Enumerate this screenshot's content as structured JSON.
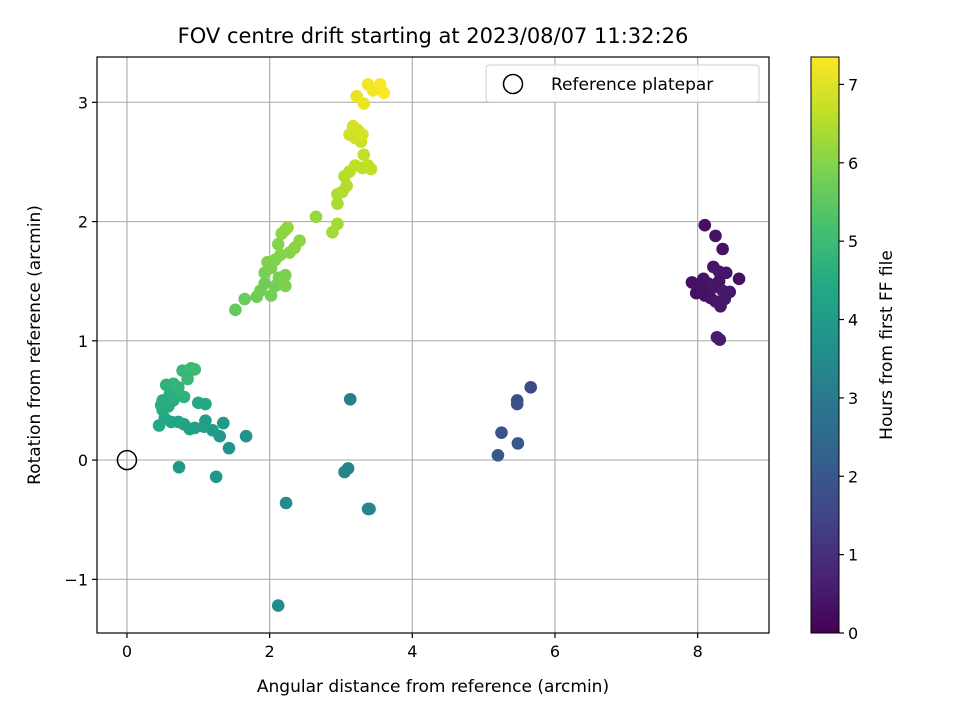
{
  "chart_data": {
    "type": "scatter",
    "title": "FOV centre drift starting at 2023/08/07 11:32:26",
    "xlabel": "Angular distance from reference (arcmin)",
    "ylabel": "Rotation from reference (arcmin)",
    "xlim": [
      -0.42,
      9.0
    ],
    "ylim": [
      -1.45,
      3.38
    ],
    "xticks": [
      0,
      2,
      4,
      6,
      8
    ],
    "yticks": [
      -1,
      0,
      1,
      2,
      3
    ],
    "xtick_labels": [
      "0",
      "2",
      "4",
      "6",
      "8"
    ],
    "ytick_labels": [
      "−1",
      "0",
      "1",
      "2",
      "3"
    ],
    "grid": true,
    "legend": {
      "label": "Reference platepar",
      "placement": "top-right"
    },
    "reference_point": {
      "x": 0,
      "y": 0
    },
    "colorbar": {
      "label": "Hours from first FF file",
      "min": 0,
      "max": 7.35,
      "ticks": [
        0,
        1,
        2,
        3,
        4,
        5,
        6,
        7
      ],
      "tick_labels": [
        "0",
        "1",
        "2",
        "3",
        "4",
        "5",
        "6",
        "7"
      ],
      "colormap": "viridis"
    },
    "points": [
      {
        "x": 8.1,
        "y": 1.97,
        "h": 0.3
      },
      {
        "x": 8.25,
        "y": 1.88,
        "h": 0.35
      },
      {
        "x": 8.35,
        "y": 1.77,
        "h": 0.35
      },
      {
        "x": 8.22,
        "y": 1.62,
        "h": 0.4
      },
      {
        "x": 8.3,
        "y": 1.58,
        "h": 0.45
      },
      {
        "x": 8.4,
        "y": 1.57,
        "h": 0.45
      },
      {
        "x": 8.58,
        "y": 1.52,
        "h": 0.3
      },
      {
        "x": 7.92,
        "y": 1.49,
        "h": 0.3
      },
      {
        "x": 8.0,
        "y": 1.46,
        "h": 0.35
      },
      {
        "x": 8.08,
        "y": 1.52,
        "h": 0.4
      },
      {
        "x": 8.15,
        "y": 1.48,
        "h": 0.4
      },
      {
        "x": 8.2,
        "y": 1.44,
        "h": 0.45
      },
      {
        "x": 8.28,
        "y": 1.47,
        "h": 0.45
      },
      {
        "x": 8.35,
        "y": 1.42,
        "h": 0.5
      },
      {
        "x": 8.45,
        "y": 1.41,
        "h": 0.5
      },
      {
        "x": 7.98,
        "y": 1.4,
        "h": 0.3
      },
      {
        "x": 8.1,
        "y": 1.38,
        "h": 0.35
      },
      {
        "x": 8.18,
        "y": 1.36,
        "h": 0.4
      },
      {
        "x": 8.25,
        "y": 1.33,
        "h": 0.45
      },
      {
        "x": 8.32,
        "y": 1.29,
        "h": 0.45
      },
      {
        "x": 8.38,
        "y": 1.35,
        "h": 0.5
      },
      {
        "x": 8.27,
        "y": 1.03,
        "h": 0.55
      },
      {
        "x": 8.31,
        "y": 1.01,
        "h": 0.55
      },
      {
        "x": 8.05,
        "y": 1.45,
        "h": 0.35
      },
      {
        "x": 8.3,
        "y": 1.5,
        "h": 0.4
      },
      {
        "x": 5.66,
        "y": 0.61,
        "h": 1.6
      },
      {
        "x": 5.47,
        "y": 0.5,
        "h": 1.75
      },
      {
        "x": 5.47,
        "y": 0.47,
        "h": 1.8
      },
      {
        "x": 5.25,
        "y": 0.23,
        "h": 1.9
      },
      {
        "x": 5.48,
        "y": 0.14,
        "h": 2.0
      },
      {
        "x": 5.2,
        "y": 0.04,
        "h": 2.05
      },
      {
        "x": 3.13,
        "y": 0.51,
        "h": 3.2
      },
      {
        "x": 3.1,
        "y": -0.07,
        "h": 3.25
      },
      {
        "x": 3.05,
        "y": -0.1,
        "h": 3.3
      },
      {
        "x": 3.38,
        "y": -0.41,
        "h": 3.3
      },
      {
        "x": 3.4,
        "y": -0.41,
        "h": 3.35
      },
      {
        "x": 2.23,
        "y": -0.36,
        "h": 3.5
      },
      {
        "x": 2.12,
        "y": -1.22,
        "h": 3.6
      },
      {
        "x": 1.67,
        "y": 0.2,
        "h": 3.7
      },
      {
        "x": 1.43,
        "y": 0.1,
        "h": 3.8
      },
      {
        "x": 1.25,
        "y": -0.14,
        "h": 3.85
      },
      {
        "x": 0.73,
        "y": -0.06,
        "h": 3.9
      },
      {
        "x": 1.3,
        "y": 0.2,
        "h": 3.9
      },
      {
        "x": 1.35,
        "y": 0.31,
        "h": 3.95
      },
      {
        "x": 1.2,
        "y": 0.25,
        "h": 4.0
      },
      {
        "x": 1.1,
        "y": 0.33,
        "h": 4.05
      },
      {
        "x": 1.08,
        "y": 0.28,
        "h": 4.1
      },
      {
        "x": 0.95,
        "y": 0.27,
        "h": 4.15
      },
      {
        "x": 0.88,
        "y": 0.26,
        "h": 4.2
      },
      {
        "x": 0.8,
        "y": 0.3,
        "h": 4.2
      },
      {
        "x": 0.72,
        "y": 0.32,
        "h": 4.3
      },
      {
        "x": 0.62,
        "y": 0.32,
        "h": 4.3
      },
      {
        "x": 0.53,
        "y": 0.35,
        "h": 4.35
      },
      {
        "x": 0.45,
        "y": 0.29,
        "h": 4.4
      },
      {
        "x": 1.1,
        "y": 0.47,
        "h": 4.4
      },
      {
        "x": 1.0,
        "y": 0.48,
        "h": 4.45
      },
      {
        "x": 0.5,
        "y": 0.42,
        "h": 4.5
      },
      {
        "x": 0.58,
        "y": 0.45,
        "h": 4.5
      },
      {
        "x": 0.65,
        "y": 0.5,
        "h": 4.55
      },
      {
        "x": 0.5,
        "y": 0.5,
        "h": 4.6
      },
      {
        "x": 0.6,
        "y": 0.55,
        "h": 4.6
      },
      {
        "x": 0.7,
        "y": 0.58,
        "h": 4.65
      },
      {
        "x": 0.8,
        "y": 0.53,
        "h": 4.7
      },
      {
        "x": 0.55,
        "y": 0.63,
        "h": 4.7
      },
      {
        "x": 0.65,
        "y": 0.64,
        "h": 4.75
      },
      {
        "x": 0.72,
        "y": 0.61,
        "h": 4.8
      },
      {
        "x": 0.78,
        "y": 0.75,
        "h": 4.85
      },
      {
        "x": 0.85,
        "y": 0.73,
        "h": 4.9
      },
      {
        "x": 0.9,
        "y": 0.77,
        "h": 4.95
      },
      {
        "x": 0.95,
        "y": 0.76,
        "h": 5.0
      },
      {
        "x": 0.85,
        "y": 0.68,
        "h": 4.9
      },
      {
        "x": 0.48,
        "y": 0.46,
        "h": 4.55
      },
      {
        "x": 1.52,
        "y": 1.26,
        "h": 5.6
      },
      {
        "x": 1.65,
        "y": 1.35,
        "h": 5.65
      },
      {
        "x": 1.82,
        "y": 1.37,
        "h": 5.7
      },
      {
        "x": 1.87,
        "y": 1.42,
        "h": 5.75
      },
      {
        "x": 1.93,
        "y": 1.48,
        "h": 5.75
      },
      {
        "x": 2.02,
        "y": 1.38,
        "h": 5.8
      },
      {
        "x": 2.08,
        "y": 1.46,
        "h": 5.8
      },
      {
        "x": 2.13,
        "y": 1.53,
        "h": 5.85
      },
      {
        "x": 2.22,
        "y": 1.46,
        "h": 5.9
      },
      {
        "x": 2.22,
        "y": 1.55,
        "h": 5.9
      },
      {
        "x": 1.93,
        "y": 1.57,
        "h": 5.85
      },
      {
        "x": 2.02,
        "y": 1.61,
        "h": 5.9
      },
      {
        "x": 1.97,
        "y": 1.66,
        "h": 5.95
      },
      {
        "x": 2.08,
        "y": 1.68,
        "h": 5.95
      },
      {
        "x": 2.15,
        "y": 1.72,
        "h": 6.0
      },
      {
        "x": 2.28,
        "y": 1.74,
        "h": 6.05
      },
      {
        "x": 2.35,
        "y": 1.78,
        "h": 6.05
      },
      {
        "x": 2.42,
        "y": 1.84,
        "h": 6.1
      },
      {
        "x": 2.12,
        "y": 1.81,
        "h": 6.0
      },
      {
        "x": 2.17,
        "y": 1.9,
        "h": 6.05
      },
      {
        "x": 2.22,
        "y": 1.93,
        "h": 6.1
      },
      {
        "x": 2.25,
        "y": 1.95,
        "h": 6.1
      },
      {
        "x": 2.65,
        "y": 2.04,
        "h": 6.2
      },
      {
        "x": 2.88,
        "y": 1.91,
        "h": 6.35
      },
      {
        "x": 2.95,
        "y": 1.98,
        "h": 6.35
      },
      {
        "x": 2.95,
        "y": 2.15,
        "h": 6.4
      },
      {
        "x": 2.95,
        "y": 2.23,
        "h": 6.45
      },
      {
        "x": 3.02,
        "y": 2.25,
        "h": 6.45
      },
      {
        "x": 3.08,
        "y": 2.3,
        "h": 6.5
      },
      {
        "x": 3.05,
        "y": 2.38,
        "h": 6.5
      },
      {
        "x": 3.12,
        "y": 2.42,
        "h": 6.55
      },
      {
        "x": 3.2,
        "y": 2.47,
        "h": 6.6
      },
      {
        "x": 3.3,
        "y": 2.45,
        "h": 6.6
      },
      {
        "x": 3.38,
        "y": 2.47,
        "h": 6.65
      },
      {
        "x": 3.42,
        "y": 2.44,
        "h": 6.65
      },
      {
        "x": 3.32,
        "y": 2.56,
        "h": 6.65
      },
      {
        "x": 3.28,
        "y": 2.67,
        "h": 6.75
      },
      {
        "x": 3.2,
        "y": 2.7,
        "h": 6.8
      },
      {
        "x": 3.12,
        "y": 2.73,
        "h": 6.8
      },
      {
        "x": 3.23,
        "y": 2.77,
        "h": 6.85
      },
      {
        "x": 3.3,
        "y": 2.73,
        "h": 6.9
      },
      {
        "x": 3.17,
        "y": 2.8,
        "h": 6.9
      },
      {
        "x": 3.22,
        "y": 3.05,
        "h": 7.1
      },
      {
        "x": 3.32,
        "y": 2.99,
        "h": 7.15
      },
      {
        "x": 3.38,
        "y": 3.15,
        "h": 7.2
      },
      {
        "x": 3.45,
        "y": 3.1,
        "h": 7.25
      },
      {
        "x": 3.55,
        "y": 3.15,
        "h": 7.3
      },
      {
        "x": 3.6,
        "y": 3.08,
        "h": 7.35
      }
    ]
  }
}
